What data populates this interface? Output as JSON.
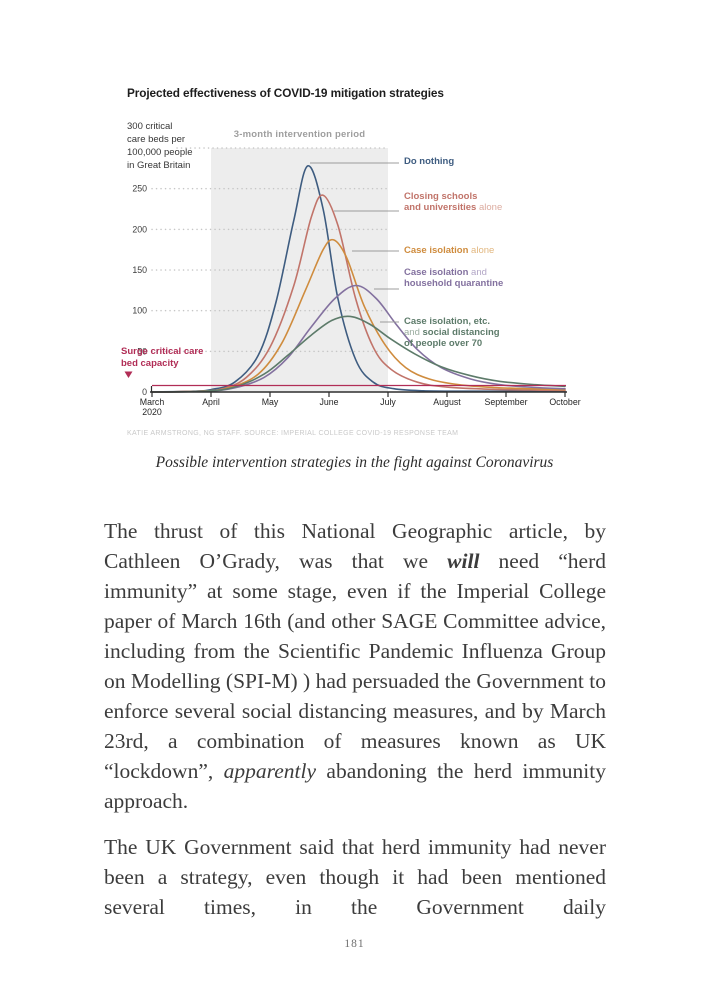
{
  "figure": {
    "caption": "Possible intervention strategies in the fight against Coronavirus"
  },
  "chart_data": {
    "type": "line",
    "title": "Projected effectiveness of COVID-19 mitigation strategies",
    "ylabel": "critical care beds per 100,000 people in Great Britain",
    "ylabel_lines": [
      "300 critical",
      "care beds per",
      "100,000 people",
      "in Great Britain"
    ],
    "ylim": [
      0,
      300
    ],
    "y_ticks": [
      0,
      50,
      100,
      150,
      200,
      250
    ],
    "x_scale": "month index, 0 = March 2020 through 7 = October",
    "x_tick_labels": [
      "March\n2020",
      "April",
      "May",
      "June",
      "July",
      "August",
      "September",
      "October"
    ],
    "grid": true,
    "legend_position": "right",
    "intervention": {
      "label": "3-month intervention period",
      "start_month": 1,
      "end_month": 4
    },
    "surge_line": {
      "label_lines": [
        "Surge critical care",
        "bed capacity"
      ],
      "value": 8,
      "color": "#b12d56"
    },
    "credit": "KATIE ARMSTRONG, NG STAFF. SOURCE: IMPERIAL COLLEGE COVID-19 RESPONSE TEAM",
    "series": [
      {
        "name": "Do nothing",
        "color": "#3e5c80",
        "light_color": "#93a6bf",
        "peak": {
          "value": 278,
          "when": "late May"
        },
        "legend_lines": [
          [
            {
              "t": "Do nothing",
              "b": 1
            }
          ]
        ],
        "points": [
          [
            0,
            0
          ],
          [
            0.7,
            1
          ],
          [
            1,
            3
          ],
          [
            1.4,
            12
          ],
          [
            1.8,
            45
          ],
          [
            2.1,
            110
          ],
          [
            2.4,
            210
          ],
          [
            2.64,
            278
          ],
          [
            2.9,
            225
          ],
          [
            3.15,
            115
          ],
          [
            3.45,
            40
          ],
          [
            3.75,
            12
          ],
          [
            4.1,
            4
          ],
          [
            4.6,
            1.5
          ],
          [
            5.2,
            1
          ],
          [
            6,
            1
          ],
          [
            7,
            1
          ]
        ]
      },
      {
        "name": "Closing schools and universities alone",
        "color": "#c1746a",
        "light_color": "#dcab9f",
        "peak": {
          "value": 242,
          "when": "early June"
        },
        "legend_lines": [
          [
            {
              "t": "Closing schools",
              "b": 1
            }
          ],
          [
            {
              "t": "and universities",
              "b": 1
            },
            {
              "t": " alone"
            }
          ]
        ],
        "points": [
          [
            0,
            0
          ],
          [
            0.8,
            1
          ],
          [
            1.2,
            4
          ],
          [
            1.6,
            18
          ],
          [
            2,
            55
          ],
          [
            2.4,
            130
          ],
          [
            2.7,
            215
          ],
          [
            2.9,
            242
          ],
          [
            3.15,
            205
          ],
          [
            3.45,
            115
          ],
          [
            3.75,
            55
          ],
          [
            4.05,
            28
          ],
          [
            4.5,
            12
          ],
          [
            5,
            6
          ],
          [
            5.7,
            3.5
          ],
          [
            6.4,
            2.5
          ],
          [
            7,
            2
          ]
        ]
      },
      {
        "name": "Case isolation alone",
        "color": "#cf8c3e",
        "light_color": "#e2b77f",
        "peak": {
          "value": 187,
          "when": "mid June"
        },
        "legend_lines": [
          [
            {
              "t": "Case isolation",
              "b": 1
            },
            {
              "t": " alone"
            }
          ]
        ],
        "points": [
          [
            0,
            0
          ],
          [
            0.8,
            1
          ],
          [
            1.3,
            5
          ],
          [
            1.8,
            22
          ],
          [
            2.2,
            60
          ],
          [
            2.6,
            125
          ],
          [
            2.9,
            175
          ],
          [
            3.08,
            187
          ],
          [
            3.3,
            165
          ],
          [
            3.6,
            105
          ],
          [
            3.95,
            58
          ],
          [
            4.3,
            30
          ],
          [
            4.7,
            16
          ],
          [
            5.2,
            9
          ],
          [
            5.8,
            5.5
          ],
          [
            6.4,
            4
          ],
          [
            7,
            3
          ]
        ]
      },
      {
        "name": "Case isolation and household quarantine",
        "color": "#83719f",
        "light_color": "#b2a6c6",
        "peak": {
          "value": 131,
          "when": "late June"
        },
        "legend_lines": [
          [
            {
              "t": "Case isolation",
              "b": 1
            },
            {
              "t": " and"
            }
          ],
          [
            {
              "t": "household quarantine",
              "b": 1
            }
          ]
        ],
        "points": [
          [
            0,
            0
          ],
          [
            0.9,
            1
          ],
          [
            1.4,
            5
          ],
          [
            1.9,
            18
          ],
          [
            2.3,
            42
          ],
          [
            2.7,
            80
          ],
          [
            3.1,
            115
          ],
          [
            3.46,
            131
          ],
          [
            3.8,
            115
          ],
          [
            4.15,
            82
          ],
          [
            4.5,
            52
          ],
          [
            4.9,
            30
          ],
          [
            5.4,
            16
          ],
          [
            5.9,
            9
          ],
          [
            6.5,
            5.5
          ],
          [
            7,
            4
          ]
        ]
      },
      {
        "name": "Case isolation, etc. and social distancing of people over 70",
        "color": "#5d7b6a",
        "light_color": "#9aac9f",
        "peak": {
          "value": 93,
          "when": "late June"
        },
        "legend_lines": [
          [
            {
              "t": "Case isolation, etc.",
              "b": 1
            }
          ],
          [
            {
              "t": "and "
            },
            {
              "t": "social distancing",
              "b": 1
            }
          ],
          [
            {
              "t": "of people over 70",
              "b": 1
            }
          ]
        ],
        "points": [
          [
            0,
            0
          ],
          [
            0.9,
            1
          ],
          [
            1.4,
            6
          ],
          [
            1.9,
            22
          ],
          [
            2.3,
            45
          ],
          [
            2.7,
            70
          ],
          [
            3.05,
            88
          ],
          [
            3.36,
            93
          ],
          [
            3.7,
            83
          ],
          [
            4.05,
            65
          ],
          [
            4.45,
            47
          ],
          [
            4.9,
            31
          ],
          [
            5.4,
            20
          ],
          [
            5.9,
            13
          ],
          [
            6.5,
            9
          ],
          [
            7,
            7
          ]
        ]
      }
    ]
  },
  "body": {
    "paragraphs": [
      {
        "runs": [
          {
            "t": "The thrust of this National Geographic article, by Cathleen O’Grady, was that we "
          },
          {
            "t": "will",
            "bi": 1
          },
          {
            "t": " need “herd immunity” at some stage, even if the Imperial College paper of March 16th (and other SAGE Committee advice, including from the Scientific Pandemic Influenza Group on Modelling (SPI-M) ) had persuaded the Government to enforce several social distancing measures, and by March 23rd, a combination of measures known as UK “lockdown”, "
          },
          {
            "t": "apparently",
            "i": 1
          },
          {
            "t": " abandoning the herd immunity approach."
          }
        ]
      },
      {
        "runs": [
          {
            "t": "The UK Government said that herd immunity had never been a strategy, even though it had been mentioned several times, in the Government daily"
          }
        ]
      }
    ]
  },
  "page": {
    "number": "181"
  }
}
